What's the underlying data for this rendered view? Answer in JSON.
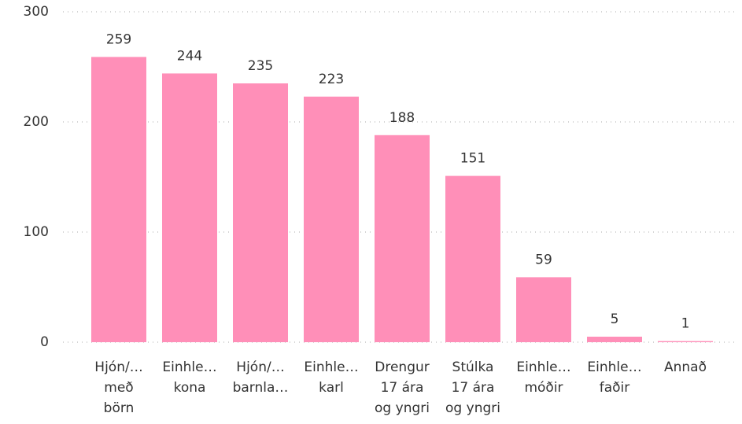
{
  "chart_data": {
    "type": "bar",
    "categories": [
      [
        "Hjón/…",
        "með",
        "börn"
      ],
      [
        "Einhle…",
        "kona"
      ],
      [
        "Hjón/…",
        "barnla…"
      ],
      [
        "Einhle…",
        "karl"
      ],
      [
        "Drengur",
        "17 ára",
        "og yngri"
      ],
      [
        "Stúlka",
        "17 ára",
        "og yngri"
      ],
      [
        "Einhle…",
        "móðir"
      ],
      [
        "Einhle…",
        "faðir"
      ],
      [
        "Annað"
      ]
    ],
    "values": [
      259,
      244,
      235,
      223,
      188,
      151,
      59,
      5,
      1
    ],
    "color": "#ff8fb8",
    "ylim": [
      0,
      300
    ],
    "yticks": [
      0,
      100,
      200,
      300
    ],
    "grid": true
  }
}
